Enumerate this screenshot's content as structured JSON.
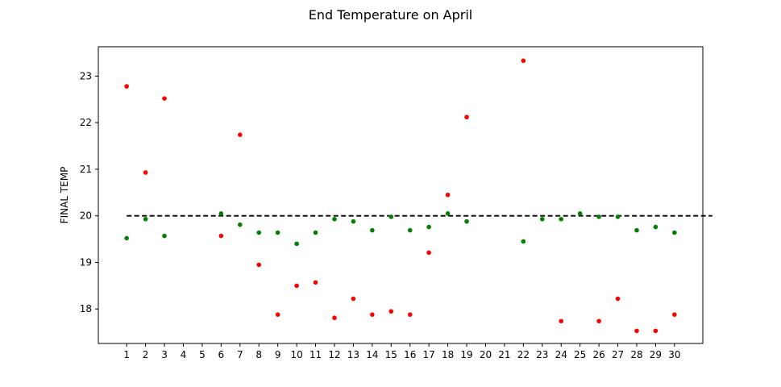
{
  "chart_data": {
    "type": "scatter",
    "title": "End Temperature on April",
    "xlabel": "",
    "ylabel": "FINAL TEMP",
    "xlim": [
      -0.5,
      31.5
    ],
    "ylim": [
      17.26,
      23.63
    ],
    "x_ticks": [
      "1",
      "2",
      "3",
      "4",
      "5",
      "6",
      "7",
      "8",
      "9",
      "10",
      "11",
      "12",
      "13",
      "14",
      "15",
      "16",
      "17",
      "18",
      "19",
      "20",
      "21",
      "22",
      "23",
      "24",
      "25",
      "26",
      "27",
      "28",
      "29",
      "30"
    ],
    "y_ticks": [
      18,
      19,
      20,
      21,
      22,
      23
    ],
    "grid": false,
    "reference_line": {
      "y": 20,
      "x_range": [
        1,
        32
      ],
      "style": "dashed",
      "color": "#000000"
    },
    "colors": {
      "red": "#ff0000",
      "green": "#008000"
    },
    "series": [
      {
        "color": "#ff0000",
        "points": [
          {
            "x": 1,
            "y": 22.78
          },
          {
            "x": 2,
            "y": 20.93
          },
          {
            "x": 3,
            "y": 22.52
          },
          {
            "x": 6,
            "y": 19.57
          },
          {
            "x": 7,
            "y": 21.74
          },
          {
            "x": 8,
            "y": 18.95
          },
          {
            "x": 9,
            "y": 17.88
          },
          {
            "x": 10,
            "y": 18.5
          },
          {
            "x": 11,
            "y": 18.57
          },
          {
            "x": 12,
            "y": 17.81
          },
          {
            "x": 13,
            "y": 18.22
          },
          {
            "x": 14,
            "y": 17.88
          },
          {
            "x": 15,
            "y": 17.95
          },
          {
            "x": 16,
            "y": 17.88
          },
          {
            "x": 17,
            "y": 19.21
          },
          {
            "x": 18,
            "y": 20.45
          },
          {
            "x": 19,
            "y": 22.12
          },
          {
            "x": 22,
            "y": 23.33
          },
          {
            "x": 24,
            "y": 17.74
          },
          {
            "x": 26,
            "y": 17.74
          },
          {
            "x": 27,
            "y": 18.22
          },
          {
            "x": 28,
            "y": 17.53
          },
          {
            "x": 29,
            "y": 17.53
          },
          {
            "x": 30,
            "y": 17.88
          }
        ]
      },
      {
        "color": "#008000",
        "points": [
          {
            "x": 1,
            "y": 19.52
          },
          {
            "x": 2,
            "y": 19.93
          },
          {
            "x": 3,
            "y": 19.57
          },
          {
            "x": 6,
            "y": 20.05
          },
          {
            "x": 7,
            "y": 19.81
          },
          {
            "x": 8,
            "y": 19.64
          },
          {
            "x": 9,
            "y": 19.64
          },
          {
            "x": 10,
            "y": 19.4
          },
          {
            "x": 11,
            "y": 19.64
          },
          {
            "x": 12,
            "y": 19.93
          },
          {
            "x": 13,
            "y": 19.88
          },
          {
            "x": 14,
            "y": 19.69
          },
          {
            "x": 15,
            "y": 19.98
          },
          {
            "x": 16,
            "y": 19.69
          },
          {
            "x": 17,
            "y": 19.76
          },
          {
            "x": 18,
            "y": 20.05
          },
          {
            "x": 19,
            "y": 19.88
          },
          {
            "x": 22,
            "y": 19.45
          },
          {
            "x": 23,
            "y": 19.93
          },
          {
            "x": 24,
            "y": 19.93
          },
          {
            "x": 25,
            "y": 20.05
          },
          {
            "x": 26,
            "y": 19.98
          },
          {
            "x": 27,
            "y": 19.98
          },
          {
            "x": 28,
            "y": 19.69
          },
          {
            "x": 29,
            "y": 19.76
          },
          {
            "x": 30,
            "y": 19.64
          }
        ]
      }
    ]
  }
}
